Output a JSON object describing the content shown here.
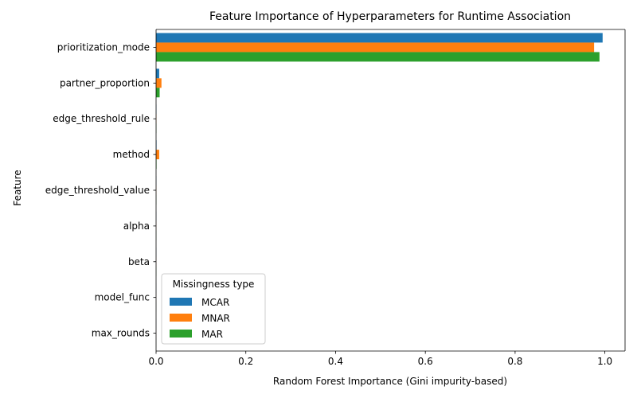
{
  "chart_data": {
    "type": "bar",
    "orientation": "horizontal",
    "title": "Feature Importance of Hyperparameters for Runtime Association",
    "xlabel": "Random Forest Importance (Gini impurity-based)",
    "ylabel": "Feature",
    "xlim": [
      0,
      1.045
    ],
    "xticks": [
      0.0,
      0.2,
      0.4,
      0.6,
      0.8,
      1.0
    ],
    "xtick_labels": [
      "0.0",
      "0.2",
      "0.4",
      "0.6",
      "0.8",
      "1.0"
    ],
    "grid": false,
    "categories": [
      "prioritization_mode",
      "partner_proportion",
      "edge_threshold_rule",
      "method",
      "edge_threshold_value",
      "alpha",
      "beta",
      "model_func",
      "max_rounds"
    ],
    "series": [
      {
        "name": "MCAR",
        "color": "#1f77b4",
        "values": [
          0.995,
          0.007,
          0.0005,
          0.001,
          0.0003,
          0.0002,
          0.0002,
          0.0001,
          0.0001
        ]
      },
      {
        "name": "MNAR",
        "color": "#ff7f0e",
        "values": [
          0.976,
          0.012,
          0.0005,
          0.007,
          0.0003,
          0.0002,
          0.0002,
          0.0001,
          0.0001
        ]
      },
      {
        "name": "MAR",
        "color": "#2ca02c",
        "values": [
          0.988,
          0.008,
          0.0005,
          0.001,
          0.0003,
          0.0002,
          0.0002,
          0.0001,
          0.0001
        ]
      }
    ],
    "legend": {
      "title": "Missingness type",
      "placement": "lower-left"
    }
  }
}
